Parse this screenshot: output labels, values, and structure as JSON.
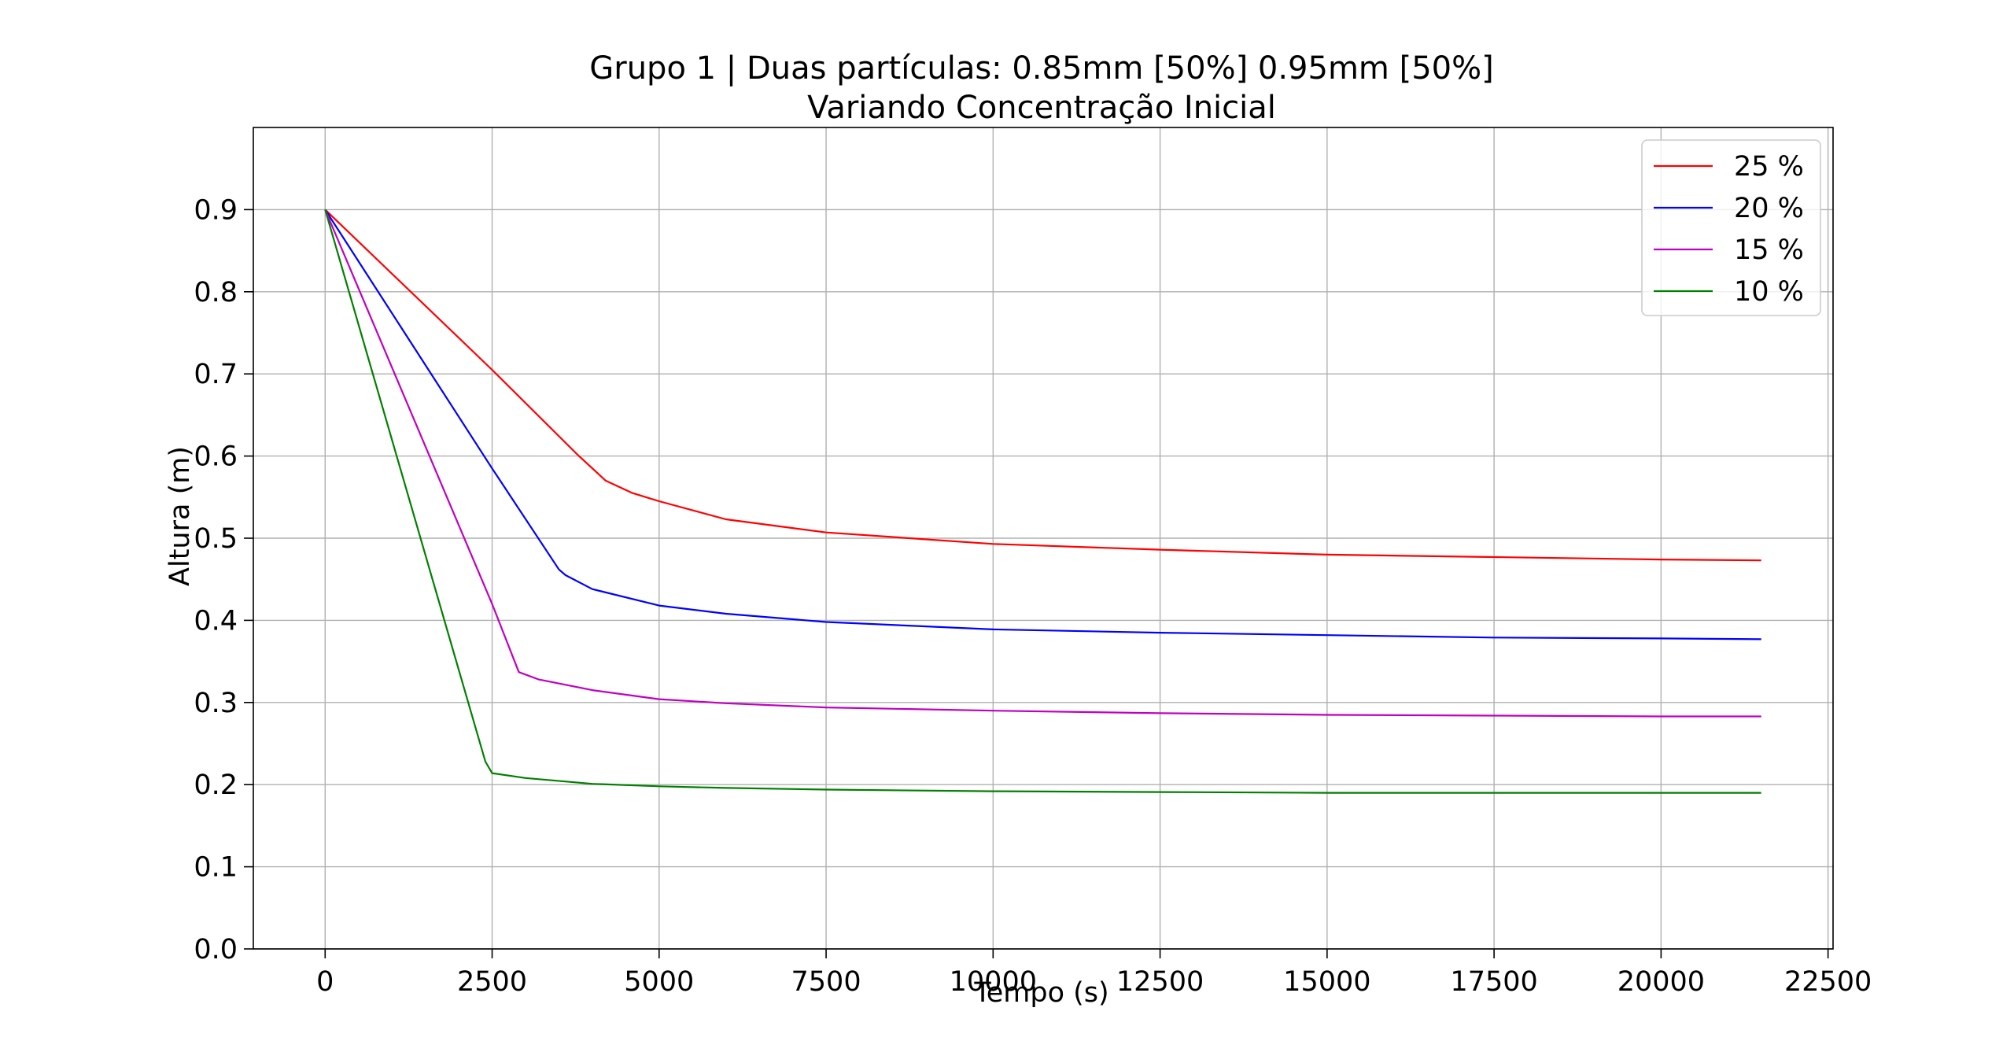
{
  "chart_data": {
    "type": "line",
    "title": "Grupo 1 |  Duas partículas: 0.85mm [50%]  0.95mm [50%]",
    "subtitle": "Variando Concentração Inicial",
    "xlabel": "Tempo (s)",
    "ylabel": "Altura (m)",
    "xlim": [
      -1075,
      22575
    ],
    "ylim": [
      0.0,
      1.0
    ],
    "x_ticks": [
      0,
      2500,
      5000,
      7500,
      10000,
      12500,
      15000,
      17500,
      20000,
      22500
    ],
    "x_tick_labels": [
      "0",
      "2500",
      "5000",
      "7500",
      "10000",
      "12500",
      "15000",
      "17500",
      "20000",
      "22500"
    ],
    "y_ticks": [
      0.0,
      0.1,
      0.2,
      0.3,
      0.4,
      0.5,
      0.6,
      0.7,
      0.8,
      0.9
    ],
    "y_tick_labels": [
      "0.0",
      "0.1",
      "0.2",
      "0.3",
      "0.4",
      "0.5",
      "0.6",
      "0.7",
      "0.8",
      "0.9"
    ],
    "grid": true,
    "legend_position": "top-right",
    "series": [
      {
        "name": "25 %",
        "color": "#ff0000",
        "x": [
          0,
          2500,
          3800,
          4200,
          4600,
          5000,
          6000,
          7500,
          10000,
          12500,
          15000,
          17500,
          20000,
          21500
        ],
        "y": [
          0.9,
          0.705,
          0.6,
          0.57,
          0.555,
          0.545,
          0.523,
          0.507,
          0.493,
          0.486,
          0.48,
          0.477,
          0.474,
          0.473
        ]
      },
      {
        "name": "20 %",
        "color": "#0000ff",
        "x": [
          0,
          2500,
          3500,
          3600,
          4000,
          5000,
          6000,
          7500,
          10000,
          12500,
          15000,
          17500,
          20000,
          21500
        ],
        "y": [
          0.9,
          0.585,
          0.462,
          0.455,
          0.438,
          0.418,
          0.408,
          0.398,
          0.389,
          0.385,
          0.382,
          0.379,
          0.378,
          0.377
        ]
      },
      {
        "name": "15 %",
        "color": "#c000c0",
        "x": [
          0,
          2500,
          2900,
          3200,
          4000,
          5000,
          6000,
          7500,
          10000,
          12500,
          15000,
          17500,
          20000,
          21500
        ],
        "y": [
          0.9,
          0.42,
          0.337,
          0.328,
          0.315,
          0.304,
          0.299,
          0.294,
          0.29,
          0.287,
          0.285,
          0.284,
          0.283,
          0.283
        ]
      },
      {
        "name": "10 %",
        "color": "#008000",
        "x": [
          0,
          2400,
          2500,
          3000,
          4000,
          5000,
          6000,
          7500,
          10000,
          12500,
          15000,
          17500,
          20000,
          21500
        ],
        "y": [
          0.9,
          0.228,
          0.214,
          0.208,
          0.201,
          0.198,
          0.196,
          0.194,
          0.192,
          0.191,
          0.19,
          0.19,
          0.19,
          0.19
        ]
      }
    ]
  }
}
